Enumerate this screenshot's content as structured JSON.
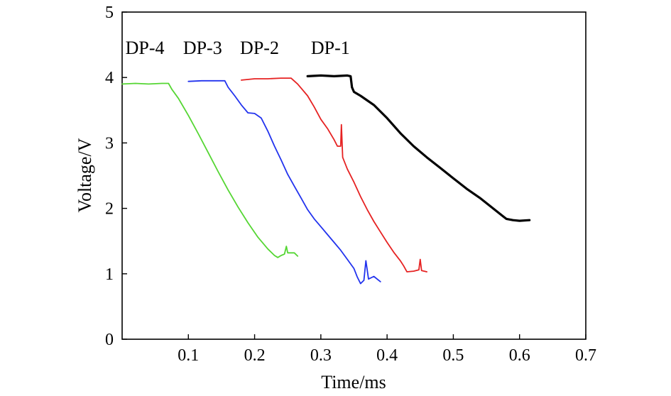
{
  "chart_data": {
    "type": "line",
    "title": "",
    "xlabel": "Time/ms",
    "ylabel": "Voltage/V",
    "xlim": [
      0,
      0.7
    ],
    "ylim": [
      0,
      5
    ],
    "xticks": [
      {
        "value": 0.1,
        "label": "0.1"
      },
      {
        "value": 0.2,
        "label": "0.2"
      },
      {
        "value": 0.3,
        "label": "0.3"
      },
      {
        "value": 0.4,
        "label": "0.4"
      },
      {
        "value": 0.5,
        "label": "0.5"
      },
      {
        "value": 0.6,
        "label": "0.6"
      },
      {
        "value": 0.7,
        "label": "0.7"
      }
    ],
    "yticks": [
      {
        "value": 0,
        "label": "0"
      },
      {
        "value": 1,
        "label": "1"
      },
      {
        "value": 2,
        "label": "2"
      },
      {
        "value": 3,
        "label": "3"
      },
      {
        "value": 4,
        "label": "4"
      },
      {
        "value": 5,
        "label": "5"
      }
    ],
    "grid": false,
    "legend": "none",
    "series": [
      {
        "name": "DP-1",
        "color": "#000000",
        "label_anchor": [
          0.285,
          4.36
        ],
        "x": [
          0.28,
          0.3,
          0.32,
          0.34,
          0.345,
          0.347,
          0.35,
          0.36,
          0.37,
          0.38,
          0.39,
          0.4,
          0.42,
          0.44,
          0.46,
          0.48,
          0.5,
          0.52,
          0.54,
          0.56,
          0.575,
          0.58,
          0.59,
          0.6,
          0.615
        ],
        "y": [
          4.02,
          4.03,
          4.02,
          4.03,
          4.02,
          3.85,
          3.78,
          3.72,
          3.65,
          3.58,
          3.48,
          3.38,
          3.15,
          2.95,
          2.78,
          2.62,
          2.46,
          2.3,
          2.16,
          2.0,
          1.88,
          1.84,
          1.82,
          1.81,
          1.82
        ]
      },
      {
        "name": "DP-2",
        "color": "#e62222",
        "label_anchor": 0.178,
        "label_y": 4.36,
        "x": [
          0.18,
          0.2,
          0.22,
          0.24,
          0.255,
          0.265,
          0.28,
          0.29,
          0.3,
          0.31,
          0.32,
          0.325,
          0.33,
          0.331,
          0.333,
          0.34,
          0.35,
          0.36,
          0.37,
          0.38,
          0.39,
          0.4,
          0.41,
          0.42,
          0.425,
          0.43,
          0.44,
          0.448,
          0.45,
          0.452,
          0.46
        ],
        "y": [
          3.96,
          3.98,
          3.98,
          3.99,
          3.99,
          3.9,
          3.72,
          3.55,
          3.36,
          3.22,
          3.05,
          2.95,
          2.95,
          3.28,
          2.78,
          2.6,
          2.4,
          2.18,
          1.98,
          1.8,
          1.64,
          1.48,
          1.33,
          1.2,
          1.12,
          1.03,
          1.04,
          1.06,
          1.22,
          1.05,
          1.03
        ]
      },
      {
        "name": "DP-3",
        "color": "#2233ee",
        "label_anchor": 0.092,
        "label_y": 4.36,
        "x": [
          0.1,
          0.12,
          0.14,
          0.155,
          0.16,
          0.17,
          0.18,
          0.19,
          0.2,
          0.21,
          0.22,
          0.23,
          0.24,
          0.25,
          0.26,
          0.27,
          0.28,
          0.29,
          0.3,
          0.31,
          0.32,
          0.33,
          0.34,
          0.35,
          0.355,
          0.36,
          0.365,
          0.368,
          0.372,
          0.38,
          0.39
        ],
        "y": [
          3.94,
          3.95,
          3.95,
          3.95,
          3.85,
          3.72,
          3.58,
          3.46,
          3.45,
          3.38,
          3.18,
          2.95,
          2.74,
          2.52,
          2.34,
          2.16,
          1.98,
          1.84,
          1.72,
          1.6,
          1.48,
          1.36,
          1.22,
          1.08,
          0.95,
          0.85,
          0.9,
          1.2,
          0.92,
          0.96,
          0.88
        ]
      },
      {
        "name": "DP-4",
        "color": "#55d633",
        "label_anchor": 0.005,
        "label_y": 4.36,
        "x": [
          0.0,
          0.02,
          0.04,
          0.06,
          0.07,
          0.075,
          0.085,
          0.1,
          0.115,
          0.13,
          0.145,
          0.16,
          0.175,
          0.19,
          0.205,
          0.22,
          0.23,
          0.235,
          0.24,
          0.245,
          0.248,
          0.25,
          0.26,
          0.265
        ],
        "y": [
          3.9,
          3.91,
          3.9,
          3.91,
          3.91,
          3.82,
          3.68,
          3.42,
          3.14,
          2.85,
          2.56,
          2.28,
          2.02,
          1.78,
          1.56,
          1.38,
          1.28,
          1.25,
          1.28,
          1.3,
          1.42,
          1.32,
          1.32,
          1.27
        ]
      }
    ]
  }
}
